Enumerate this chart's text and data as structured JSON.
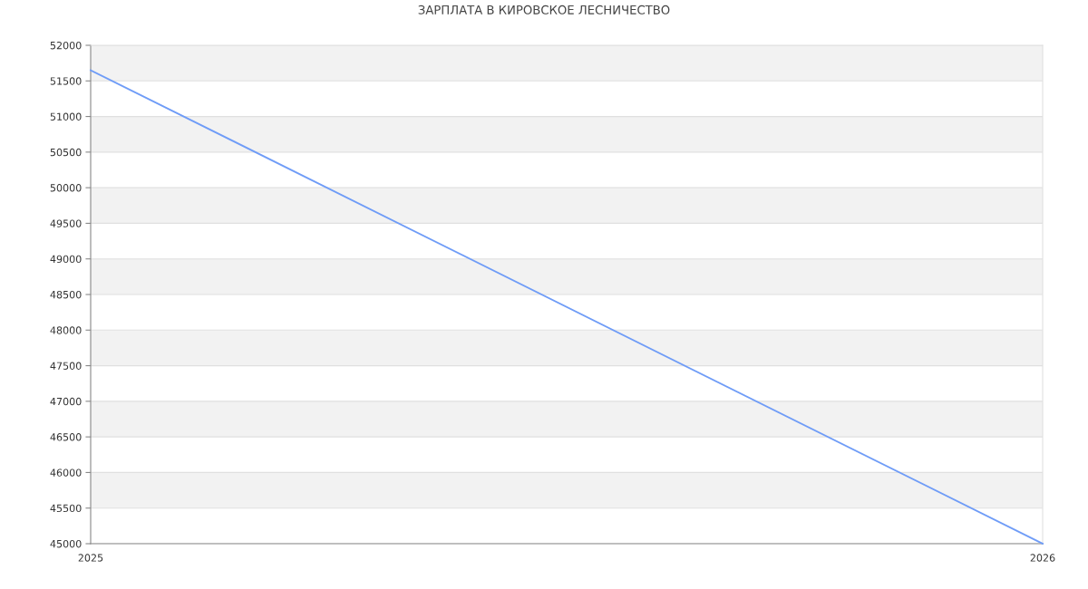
{
  "chart_data": {
    "type": "line",
    "title": "ЗАРПЛАТА В КИРОВСКОЕ ЛЕСНИЧЕСТВО",
    "x": [
      2025,
      2026
    ],
    "series": [
      {
        "color": "#6f9cf7",
        "values": [
          51650,
          45000
        ]
      }
    ],
    "xlim": [
      2025,
      2026
    ],
    "xticks": [
      2025,
      2026
    ],
    "ylim": [
      45000,
      52000
    ],
    "yticks": [
      45000,
      45500,
      46000,
      46500,
      47000,
      47500,
      48000,
      48500,
      49000,
      49500,
      50000,
      50500,
      51000,
      51500,
      52000
    ],
    "grid": "y",
    "marker": "none",
    "line_style": "solid",
    "bands": [
      {
        "axis": "y",
        "from": 45500,
        "to": 46000,
        "color": "#f2f2f2"
      },
      {
        "axis": "y",
        "from": 46500,
        "to": 47000,
        "color": "#f2f2f2"
      },
      {
        "axis": "y",
        "from": 47500,
        "to": 48000,
        "color": "#f2f2f2"
      },
      {
        "axis": "y",
        "from": 48500,
        "to": 49000,
        "color": "#f2f2f2"
      },
      {
        "axis": "y",
        "from": 49500,
        "to": 50000,
        "color": "#f2f2f2"
      },
      {
        "axis": "y",
        "from": 50500,
        "to": 51000,
        "color": "#f2f2f2"
      },
      {
        "axis": "y",
        "from": 51500,
        "to": 52000,
        "color": "#f2f2f2"
      }
    ]
  }
}
